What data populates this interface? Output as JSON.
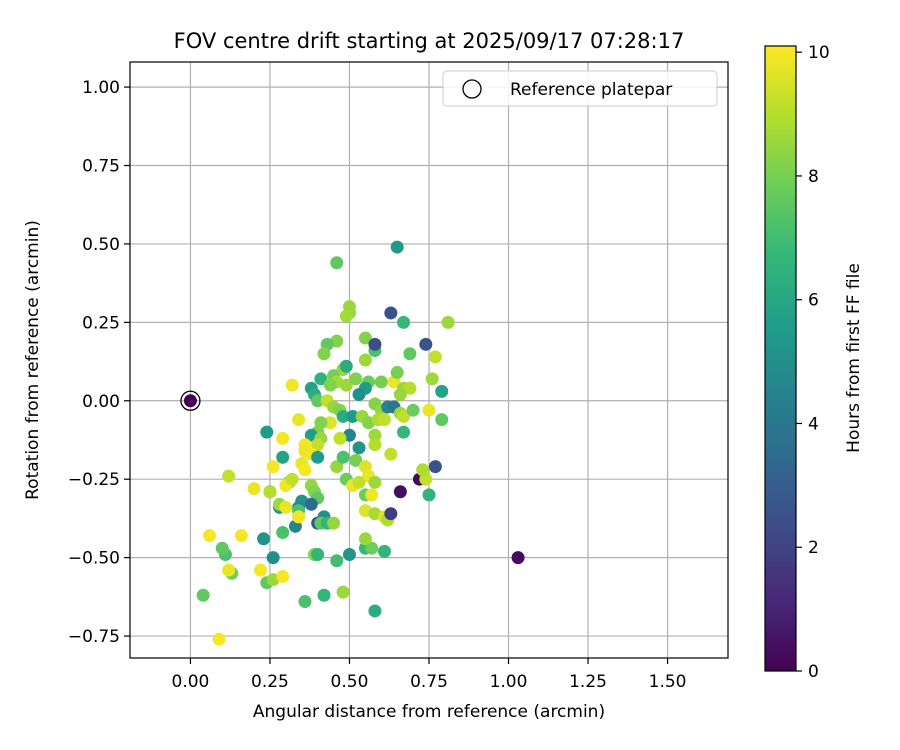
{
  "chart_data": {
    "type": "scatter",
    "title": "FOV centre drift starting at 2025/09/17 07:28:17",
    "xlabel": "Angular distance from reference (arcmin)",
    "ylabel": "Rotation from reference (arcmin)",
    "xlim": [
      -0.19,
      1.69
    ],
    "ylim": [
      -0.82,
      1.08
    ],
    "xticks": [
      0.0,
      0.25,
      0.5,
      0.75,
      1.0,
      1.25,
      1.5
    ],
    "xtick_labels": [
      "0.00",
      "0.25",
      "0.50",
      "0.75",
      "1.00",
      "1.25",
      "1.50"
    ],
    "yticks": [
      1.0,
      0.75,
      0.5,
      0.25,
      0.0,
      -0.25,
      -0.5,
      -0.75
    ],
    "ytick_labels": [
      "1.00",
      "0.75",
      "0.50",
      "0.25",
      "0.00",
      "−0.25",
      "−0.50",
      "−0.75"
    ],
    "grid": true,
    "legend": {
      "position": "top-right",
      "entries": [
        "Reference platepar"
      ]
    },
    "colorbar": {
      "label": "Hours from first FF file",
      "min": 0,
      "max": 10.1,
      "ticks": [
        0,
        2,
        4,
        6,
        8,
        10
      ],
      "tick_labels": [
        "0",
        "2",
        "4",
        "6",
        "8",
        "10"
      ],
      "colormap": "viridis"
    },
    "reference_point": {
      "x": 0.0,
      "y": 0.0,
      "marker": "open-circle"
    },
    "points": [
      {
        "x": 0.46,
        "y": 0.44,
        "h": 7.6
      },
      {
        "x": 0.65,
        "y": 0.49,
        "h": 5.5
      },
      {
        "x": 0.5,
        "y": 0.3,
        "h": 8.6
      },
      {
        "x": 0.5,
        "y": 0.28,
        "h": 8.5
      },
      {
        "x": 0.49,
        "y": 0.27,
        "h": 8.7
      },
      {
        "x": 0.63,
        "y": 0.28,
        "h": 2.6
      },
      {
        "x": 0.67,
        "y": 0.25,
        "h": 6.8
      },
      {
        "x": 0.81,
        "y": 0.25,
        "h": 8.6
      },
      {
        "x": 0.55,
        "y": 0.2,
        "h": 8.2
      },
      {
        "x": 0.46,
        "y": 0.19,
        "h": 8.2
      },
      {
        "x": 0.43,
        "y": 0.18,
        "h": 7.6
      },
      {
        "x": 0.42,
        "y": 0.15,
        "h": 8.2
      },
      {
        "x": 0.58,
        "y": 0.16,
        "h": 7.2
      },
      {
        "x": 0.58,
        "y": 0.18,
        "h": 2.4
      },
      {
        "x": 0.74,
        "y": 0.18,
        "h": 2.6
      },
      {
        "x": 0.69,
        "y": 0.15,
        "h": 7.6
      },
      {
        "x": 0.77,
        "y": 0.14,
        "h": 9.2
      },
      {
        "x": 0.55,
        "y": 0.13,
        "h": 8.6
      },
      {
        "x": 0.48,
        "y": 0.1,
        "h": 5.0
      },
      {
        "x": 0.48,
        "y": 0.1,
        "h": 8.6
      },
      {
        "x": 0.49,
        "y": 0.11,
        "h": 6.3
      },
      {
        "x": 0.45,
        "y": 0.08,
        "h": 8.0
      },
      {
        "x": 0.41,
        "y": 0.07,
        "h": 6.5
      },
      {
        "x": 0.46,
        "y": 0.06,
        "h": 8.7
      },
      {
        "x": 0.44,
        "y": 0.05,
        "h": 8.2
      },
      {
        "x": 0.49,
        "y": 0.05,
        "h": 8.6
      },
      {
        "x": 0.52,
        "y": 0.07,
        "h": 8.2
      },
      {
        "x": 0.56,
        "y": 0.06,
        "h": 7.8
      },
      {
        "x": 0.6,
        "y": 0.06,
        "h": 8.0
      },
      {
        "x": 0.64,
        "y": 0.06,
        "h": 9.8
      },
      {
        "x": 0.65,
        "y": 0.09,
        "h": 8.0
      },
      {
        "x": 0.67,
        "y": 0.04,
        "h": 8.6
      },
      {
        "x": 0.69,
        "y": 0.04,
        "h": 9.0
      },
      {
        "x": 0.76,
        "y": 0.07,
        "h": 8.6
      },
      {
        "x": 0.79,
        "y": 0.03,
        "h": 5.8
      },
      {
        "x": 0.66,
        "y": 0.02,
        "h": 8.5
      },
      {
        "x": 0.38,
        "y": 0.04,
        "h": 5.8
      },
      {
        "x": 0.39,
        "y": 0.02,
        "h": 6.3
      },
      {
        "x": 0.32,
        "y": 0.05,
        "h": 9.9
      },
      {
        "x": 0.4,
        "y": 0.0,
        "h": 7.6
      },
      {
        "x": 0.43,
        "y": 0.0,
        "h": 9.2
      },
      {
        "x": 0.45,
        "y": -0.02,
        "h": 8.5
      },
      {
        "x": 0.47,
        "y": -0.03,
        "h": 8.2
      },
      {
        "x": 0.48,
        "y": -0.05,
        "h": 6.3
      },
      {
        "x": 0.51,
        "y": -0.05,
        "h": 5.5
      },
      {
        "x": 0.55,
        "y": 0.04,
        "h": 5.5
      },
      {
        "x": 0.53,
        "y": 0.02,
        "h": 5.0
      },
      {
        "x": 0.58,
        "y": -0.01,
        "h": 8.2
      },
      {
        "x": 0.6,
        "y": -0.03,
        "h": 8.5
      },
      {
        "x": 0.62,
        "y": -0.02,
        "h": 4.5
      },
      {
        "x": 0.64,
        "y": -0.02,
        "h": 4.0
      },
      {
        "x": 0.66,
        "y": -0.04,
        "h": 8.6
      },
      {
        "x": 0.67,
        "y": -0.05,
        "h": 9.2
      },
      {
        "x": 0.7,
        "y": -0.03,
        "h": 7.8
      },
      {
        "x": 0.75,
        "y": -0.03,
        "h": 9.8
      },
      {
        "x": 0.79,
        "y": -0.06,
        "h": 7.6
      },
      {
        "x": 0.54,
        "y": -0.05,
        "h": 8.6
      },
      {
        "x": 0.56,
        "y": -0.07,
        "h": 8.2
      },
      {
        "x": 0.59,
        "y": -0.06,
        "h": 8.9
      },
      {
        "x": 0.61,
        "y": -0.06,
        "h": 9.2
      },
      {
        "x": 0.67,
        "y": -0.1,
        "h": 6.7
      },
      {
        "x": 0.58,
        "y": -0.11,
        "h": 8.6
      },
      {
        "x": 0.58,
        "y": -0.14,
        "h": 9.0
      },
      {
        "x": 0.53,
        "y": -0.15,
        "h": 5.2
      },
      {
        "x": 0.5,
        "y": -0.11,
        "h": 4.6
      },
      {
        "x": 0.47,
        "y": -0.12,
        "h": 9.2
      },
      {
        "x": 0.44,
        "y": -0.07,
        "h": 9.6
      },
      {
        "x": 0.41,
        "y": -0.07,
        "h": 8.2
      },
      {
        "x": 0.4,
        "y": -0.1,
        "h": 8.2
      },
      {
        "x": 0.38,
        "y": -0.11,
        "h": 5.6
      },
      {
        "x": 0.41,
        "y": -0.12,
        "h": 8.5
      },
      {
        "x": 0.4,
        "y": -0.14,
        "h": 9.2
      },
      {
        "x": 0.34,
        "y": -0.06,
        "h": 9.8
      },
      {
        "x": 0.29,
        "y": -0.12,
        "h": 10.0
      },
      {
        "x": 0.36,
        "y": -0.14,
        "h": 10.0
      },
      {
        "x": 0.36,
        "y": -0.16,
        "h": 9.8
      },
      {
        "x": 0.38,
        "y": -0.17,
        "h": 9.9
      },
      {
        "x": 0.4,
        "y": -0.18,
        "h": 5.5
      },
      {
        "x": 0.35,
        "y": -0.2,
        "h": 9.8
      },
      {
        "x": 0.36,
        "y": -0.22,
        "h": 10.0
      },
      {
        "x": 0.29,
        "y": -0.18,
        "h": 5.8
      },
      {
        "x": 0.26,
        "y": -0.21,
        "h": 10.0
      },
      {
        "x": 0.24,
        "y": -0.1,
        "h": 5.5
      },
      {
        "x": 0.46,
        "y": -0.21,
        "h": 8.5
      },
      {
        "x": 0.48,
        "y": -0.18,
        "h": 7.2
      },
      {
        "x": 0.52,
        "y": -0.19,
        "h": 8.0
      },
      {
        "x": 0.55,
        "y": -0.21,
        "h": 9.6
      },
      {
        "x": 0.56,
        "y": -0.24,
        "h": 9.8
      },
      {
        "x": 0.58,
        "y": -0.26,
        "h": 8.6
      },
      {
        "x": 0.49,
        "y": -0.25,
        "h": 7.8
      },
      {
        "x": 0.51,
        "y": -0.27,
        "h": 9.8
      },
      {
        "x": 0.53,
        "y": -0.26,
        "h": 9.2
      },
      {
        "x": 0.55,
        "y": -0.3,
        "h": 7.8
      },
      {
        "x": 0.57,
        "y": -0.3,
        "h": 9.9
      },
      {
        "x": 0.63,
        "y": -0.17,
        "h": 9.2
      },
      {
        "x": 0.66,
        "y": -0.29,
        "h": 0.4
      },
      {
        "x": 0.72,
        "y": -0.25,
        "h": 0.2
      },
      {
        "x": 0.74,
        "y": -0.25,
        "h": 9.2
      },
      {
        "x": 0.73,
        "y": -0.22,
        "h": 8.9
      },
      {
        "x": 0.77,
        "y": -0.21,
        "h": 2.6
      },
      {
        "x": 0.75,
        "y": -0.3,
        "h": 6.6
      },
      {
        "x": 0.38,
        "y": -0.27,
        "h": 8.5
      },
      {
        "x": 0.39,
        "y": -0.29,
        "h": 8.2
      },
      {
        "x": 0.4,
        "y": -0.31,
        "h": 7.6
      },
      {
        "x": 0.31,
        "y": -0.26,
        "h": 8.2
      },
      {
        "x": 0.3,
        "y": -0.27,
        "h": 9.9
      },
      {
        "x": 0.32,
        "y": -0.25,
        "h": 9.2
      },
      {
        "x": 0.25,
        "y": -0.29,
        "h": 5.0
      },
      {
        "x": 0.25,
        "y": -0.29,
        "h": 9.0
      },
      {
        "x": 0.2,
        "y": -0.28,
        "h": 9.8
      },
      {
        "x": 0.12,
        "y": -0.24,
        "h": 9.2
      },
      {
        "x": 0.35,
        "y": -0.32,
        "h": 5.2
      },
      {
        "x": 0.34,
        "y": -0.34,
        "h": 4.8
      },
      {
        "x": 0.34,
        "y": -0.35,
        "h": 7.2
      },
      {
        "x": 0.33,
        "y": -0.4,
        "h": 4.6
      },
      {
        "x": 0.28,
        "y": -0.34,
        "h": 5.5
      },
      {
        "x": 0.28,
        "y": -0.33,
        "h": 8.6
      },
      {
        "x": 0.3,
        "y": -0.34,
        "h": 9.8
      },
      {
        "x": 0.29,
        "y": -0.42,
        "h": 7.2
      },
      {
        "x": 0.34,
        "y": -0.37,
        "h": 9.9
      },
      {
        "x": 0.38,
        "y": -0.33,
        "h": 3.6
      },
      {
        "x": 0.42,
        "y": -0.37,
        "h": 5.0
      },
      {
        "x": 0.4,
        "y": -0.39,
        "h": 2.6
      },
      {
        "x": 0.41,
        "y": -0.39,
        "h": 7.6
      },
      {
        "x": 0.43,
        "y": -0.39,
        "h": 6.6
      },
      {
        "x": 0.45,
        "y": -0.39,
        "h": 8.5
      },
      {
        "x": 0.55,
        "y": -0.35,
        "h": 9.6
      },
      {
        "x": 0.58,
        "y": -0.36,
        "h": 8.8
      },
      {
        "x": 0.61,
        "y": -0.37,
        "h": 9.6
      },
      {
        "x": 0.62,
        "y": -0.38,
        "h": 8.9
      },
      {
        "x": 0.63,
        "y": -0.36,
        "h": 1.8
      },
      {
        "x": 0.23,
        "y": -0.44,
        "h": 5.2
      },
      {
        "x": 0.26,
        "y": -0.5,
        "h": 5.0
      },
      {
        "x": 0.24,
        "y": -0.58,
        "h": 7.6
      },
      {
        "x": 0.26,
        "y": -0.57,
        "h": 8.6
      },
      {
        "x": 0.22,
        "y": -0.54,
        "h": 10.0
      },
      {
        "x": 0.29,
        "y": -0.56,
        "h": 10.0
      },
      {
        "x": 0.13,
        "y": -0.55,
        "h": 7.8
      },
      {
        "x": 0.11,
        "y": -0.49,
        "h": 7.2
      },
      {
        "x": 0.1,
        "y": -0.47,
        "h": 7.6
      },
      {
        "x": 0.12,
        "y": -0.54,
        "h": 9.8
      },
      {
        "x": 0.06,
        "y": -0.43,
        "h": 10.0
      },
      {
        "x": 0.16,
        "y": -0.43,
        "h": 10.0
      },
      {
        "x": 0.04,
        "y": -0.62,
        "h": 7.6
      },
      {
        "x": 0.09,
        "y": -0.76,
        "h": 10.0
      },
      {
        "x": 0.36,
        "y": -0.64,
        "h": 7.2
      },
      {
        "x": 0.39,
        "y": -0.49,
        "h": 8.2
      },
      {
        "x": 0.4,
        "y": -0.49,
        "h": 6.6
      },
      {
        "x": 0.42,
        "y": -0.62,
        "h": 6.7
      },
      {
        "x": 0.46,
        "y": -0.51,
        "h": 7.0
      },
      {
        "x": 0.48,
        "y": -0.61,
        "h": 8.6
      },
      {
        "x": 0.5,
        "y": -0.49,
        "h": 5.2
      },
      {
        "x": 0.55,
        "y": -0.47,
        "h": 6.8
      },
      {
        "x": 0.57,
        "y": -0.47,
        "h": 7.8
      },
      {
        "x": 0.55,
        "y": -0.44,
        "h": 8.6
      },
      {
        "x": 0.58,
        "y": -0.67,
        "h": 6.3
      },
      {
        "x": 0.61,
        "y": -0.48,
        "h": 6.6
      },
      {
        "x": 1.03,
        "y": -0.5,
        "h": 0.3
      }
    ]
  }
}
